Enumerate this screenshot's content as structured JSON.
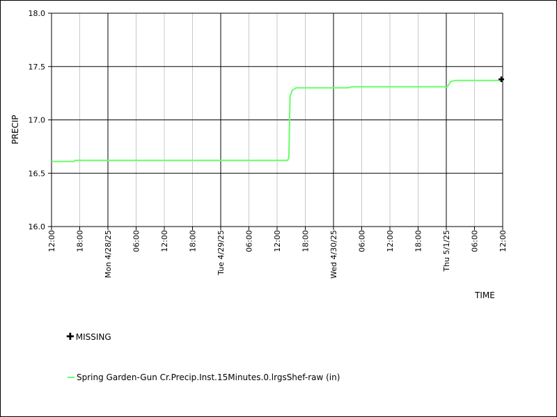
{
  "chart_data": {
    "type": "line",
    "xlabel": "TIME",
    "ylabel": "PRECIP",
    "ylim": [
      16.0,
      18.0
    ],
    "yticks": [
      "16.0",
      "16.5",
      "17.0",
      "17.5",
      "18.0"
    ],
    "x_start": "2025-04-27 12:00",
    "x_end": "2025-05-01 12:00",
    "xticks": [
      {
        "label": "12:00",
        "major": false
      },
      {
        "label": "18:00",
        "major": false
      },
      {
        "label": "Mon 4/28/25",
        "major": true
      },
      {
        "label": "06:00",
        "major": false
      },
      {
        "label": "12:00",
        "major": false
      },
      {
        "label": "18:00",
        "major": false
      },
      {
        "label": "Tue 4/29/25",
        "major": true
      },
      {
        "label": "06:00",
        "major": false
      },
      {
        "label": "12:00",
        "major": false
      },
      {
        "label": "18:00",
        "major": false
      },
      {
        "label": "Wed 4/30/25",
        "major": true
      },
      {
        "label": "06:00",
        "major": false
      },
      {
        "label": "12:00",
        "major": false
      },
      {
        "label": "18:00",
        "major": false
      },
      {
        "label": "Thu 5/1/25",
        "major": true
      },
      {
        "label": "06:00",
        "major": false
      },
      {
        "label": "12:00",
        "major": false
      }
    ],
    "grid": true,
    "series": [
      {
        "name": "Spring Garden-Gun Cr.Precip.Inst.15Minutes.0.lrgsShef-raw (in)",
        "color": "#66ff66",
        "x": [
          "2025-04-27 12:00",
          "2025-04-27 16:45",
          "2025-04-27 17:00",
          "2025-04-29 14:15",
          "2025-04-29 14:30",
          "2025-04-29 14:45",
          "2025-04-29 15:15",
          "2025-04-29 15:45",
          "2025-04-29 16:00",
          "2025-04-30 03:00",
          "2025-04-30 04:00",
          "2025-04-30 12:00",
          "2025-05-01 00:15",
          "2025-05-01 00:30",
          "2025-05-01 01:00",
          "2025-05-01 02:00",
          "2025-05-01 11:45"
        ],
        "y": [
          16.61,
          16.61,
          16.62,
          16.62,
          16.65,
          17.22,
          17.28,
          17.29,
          17.3,
          17.3,
          17.31,
          17.31,
          17.31,
          17.33,
          17.36,
          17.37,
          17.37
        ]
      }
    ],
    "missing": {
      "label": "MISSING",
      "points": [
        {
          "x": "2025-05-01 12:00",
          "y": 17.38
        }
      ]
    }
  }
}
